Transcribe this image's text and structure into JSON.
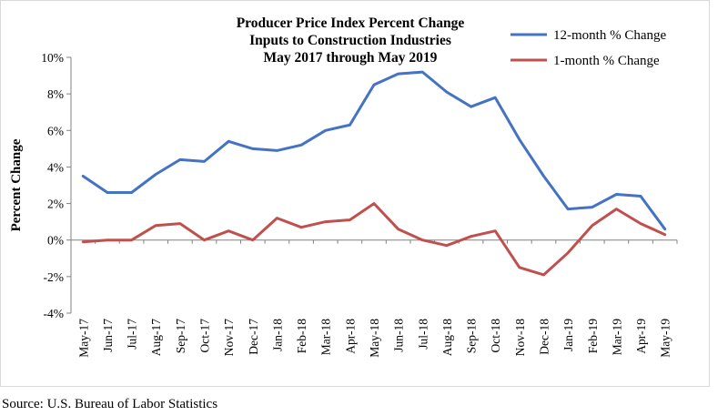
{
  "chart_data": {
    "type": "line",
    "title_lines": [
      "Producer Price Index Percent Change",
      "Inputs to Construction Industries",
      "May 2017 through May 2019"
    ],
    "xlabel": "",
    "ylabel": "Percent Change",
    "categories": [
      "May-17",
      "Jun-17",
      "Jul-17",
      "Aug-17",
      "Sep-17",
      "Oct-17",
      "Nov-17",
      "Dec-17",
      "Jan-18",
      "Feb-18",
      "Mar-18",
      "Apr-18",
      "May-18",
      "Jun-18",
      "Jul-18",
      "Aug-18",
      "Sep-18",
      "Oct-18",
      "Nov-18",
      "Dec-18",
      "Jan-19",
      "Feb-19",
      "Mar-19",
      "Apr-19",
      "May-19"
    ],
    "ylim": [
      -4,
      10
    ],
    "yticks": [
      -4,
      -2,
      0,
      2,
      4,
      6,
      8,
      10
    ],
    "ytick_labels": [
      "-4%",
      "-2%",
      "0%",
      "2%",
      "4%",
      "6%",
      "8%",
      "10%"
    ],
    "series": [
      {
        "name": "12-month % Change",
        "color": "#4472C4",
        "values": [
          3.5,
          2.6,
          2.6,
          3.6,
          4.4,
          4.3,
          5.4,
          5.0,
          4.9,
          5.2,
          6.0,
          6.3,
          8.5,
          9.1,
          9.2,
          8.1,
          7.3,
          7.8,
          5.5,
          3.5,
          1.7,
          1.8,
          2.5,
          2.4,
          0.6
        ]
      },
      {
        "name": "1-month % Change",
        "color": "#C0504D",
        "values": [
          -0.1,
          0.0,
          0.0,
          0.8,
          0.9,
          0.0,
          0.5,
          0.0,
          1.2,
          0.7,
          1.0,
          1.1,
          2.0,
          0.6,
          0.0,
          -0.3,
          0.2,
          0.5,
          -1.5,
          -1.9,
          -0.7,
          0.8,
          1.7,
          0.9,
          0.3
        ]
      }
    ],
    "legend_position": "top-right",
    "grid": false
  },
  "footer": {
    "source": "Source: U.S. Bureau of Labor Statistics"
  }
}
